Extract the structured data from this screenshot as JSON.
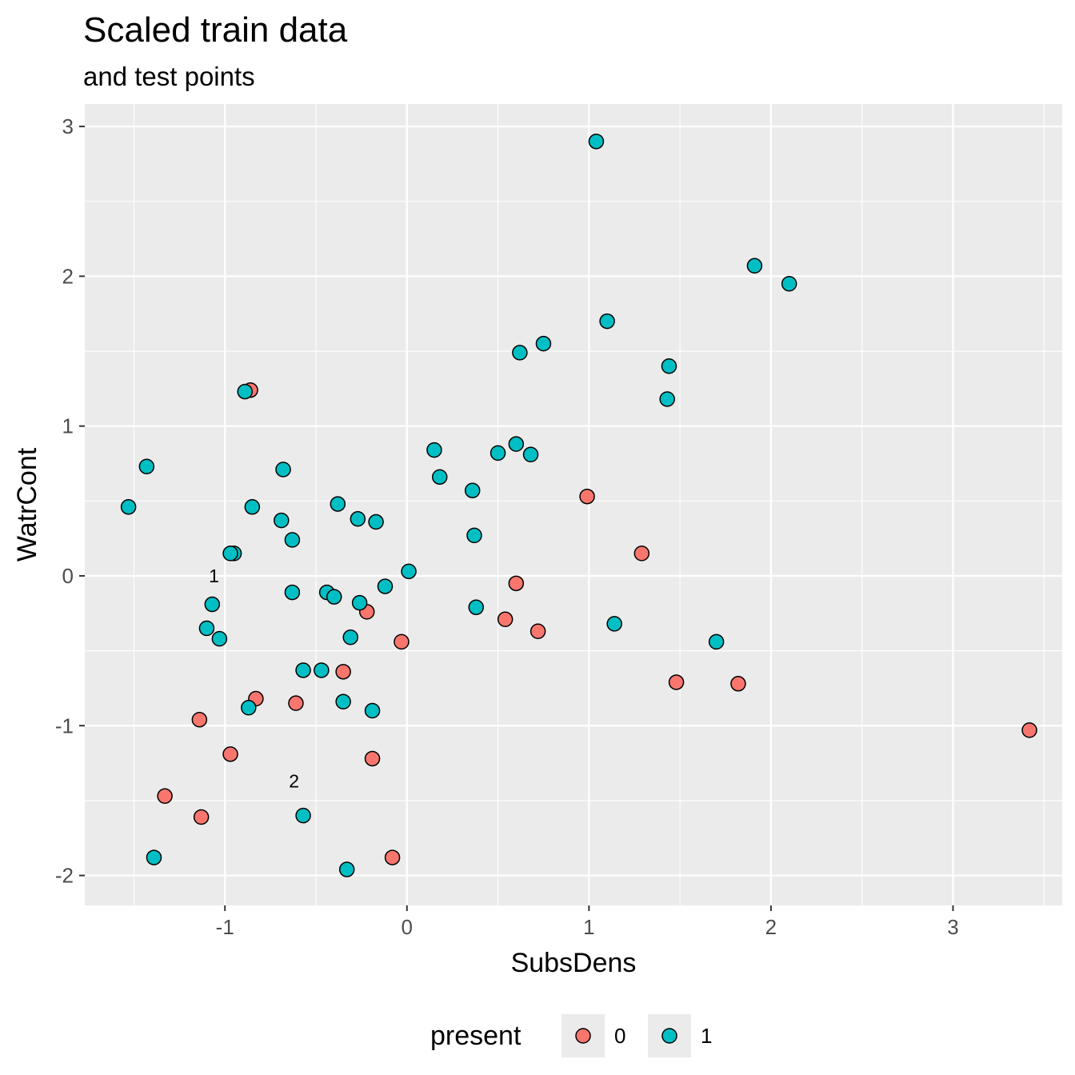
{
  "chart_data": {
    "type": "scatter",
    "title": "Scaled train data",
    "subtitle": "and test points",
    "xlabel": "SubsDens",
    "ylabel": "WatrCont",
    "xlim": [
      -1.77,
      3.6
    ],
    "ylim": [
      -2.2,
      3.15
    ],
    "x_ticks": [
      -1,
      0,
      1,
      2,
      3
    ],
    "x_tick_labels": [
      "-1",
      "0",
      "1",
      "2",
      "3"
    ],
    "y_ticks": [
      -2,
      -1,
      0,
      1,
      2,
      3
    ],
    "y_tick_labels": [
      "-2",
      "-1",
      "0",
      "1",
      "2",
      "3"
    ],
    "grid": true,
    "legend": {
      "title": "present",
      "position": "bottom",
      "entries": [
        {
          "label": "0",
          "color": "#F8766D"
        },
        {
          "label": "1",
          "color": "#00BFC4"
        }
      ]
    },
    "series": [
      {
        "name": "0",
        "color": "#F8766D",
        "points": [
          [
            -0.86,
            1.24
          ],
          [
            0.99,
            0.53
          ],
          [
            1.29,
            0.15
          ],
          [
            0.6,
            -0.05
          ],
          [
            -0.22,
            -0.24
          ],
          [
            0.54,
            -0.29
          ],
          [
            0.72,
            -0.37
          ],
          [
            -0.03,
            -0.44
          ],
          [
            -0.35,
            -0.64
          ],
          [
            1.48,
            -0.71
          ],
          [
            1.82,
            -0.72
          ],
          [
            -0.83,
            -0.82
          ],
          [
            -0.61,
            -0.85
          ],
          [
            -1.14,
            -0.96
          ],
          [
            -0.97,
            -1.19
          ],
          [
            -0.19,
            -1.22
          ],
          [
            3.42,
            -1.03
          ],
          [
            -1.33,
            -1.47
          ],
          [
            -1.13,
            -1.61
          ],
          [
            -0.08,
            -1.88
          ]
        ]
      },
      {
        "name": "1",
        "color": "#00BFC4",
        "points": [
          [
            1.04,
            2.9
          ],
          [
            1.91,
            2.07
          ],
          [
            2.1,
            1.95
          ],
          [
            1.1,
            1.7
          ],
          [
            0.75,
            1.55
          ],
          [
            0.62,
            1.49
          ],
          [
            1.44,
            1.4
          ],
          [
            1.43,
            1.18
          ],
          [
            -0.89,
            1.23
          ],
          [
            0.15,
            0.84
          ],
          [
            0.6,
            0.88
          ],
          [
            0.5,
            0.82
          ],
          [
            0.68,
            0.81
          ],
          [
            -1.43,
            0.73
          ],
          [
            -0.68,
            0.71
          ],
          [
            0.18,
            0.66
          ],
          [
            0.36,
            0.57
          ],
          [
            -1.53,
            0.46
          ],
          [
            -0.85,
            0.46
          ],
          [
            -0.38,
            0.48
          ],
          [
            -0.27,
            0.38
          ],
          [
            -0.17,
            0.36
          ],
          [
            -0.69,
            0.37
          ],
          [
            -0.63,
            0.24
          ],
          [
            0.37,
            0.27
          ],
          [
            -0.95,
            0.15
          ],
          [
            -0.97,
            0.15
          ],
          [
            0.01,
            0.03
          ],
          [
            -1.07,
            -0.19
          ],
          [
            -0.63,
            -0.11
          ],
          [
            -0.44,
            -0.11
          ],
          [
            -0.4,
            -0.14
          ],
          [
            -0.26,
            -0.18
          ],
          [
            -0.12,
            -0.07
          ],
          [
            0.38,
            -0.21
          ],
          [
            1.14,
            -0.32
          ],
          [
            -1.1,
            -0.35
          ],
          [
            -1.03,
            -0.42
          ],
          [
            -0.31,
            -0.41
          ],
          [
            1.7,
            -0.44
          ],
          [
            -0.57,
            -0.63
          ],
          [
            -0.47,
            -0.63
          ],
          [
            -0.35,
            -0.84
          ],
          [
            -0.87,
            -0.88
          ],
          [
            -0.19,
            -0.9
          ],
          [
            -0.57,
            -1.6
          ],
          [
            -1.39,
            -1.88
          ],
          [
            -0.33,
            -1.96
          ]
        ]
      }
    ],
    "test_points": [
      {
        "label": "1",
        "x": -1.06,
        "y": 0.0
      },
      {
        "label": "2",
        "x": -0.62,
        "y": -1.37
      }
    ]
  }
}
